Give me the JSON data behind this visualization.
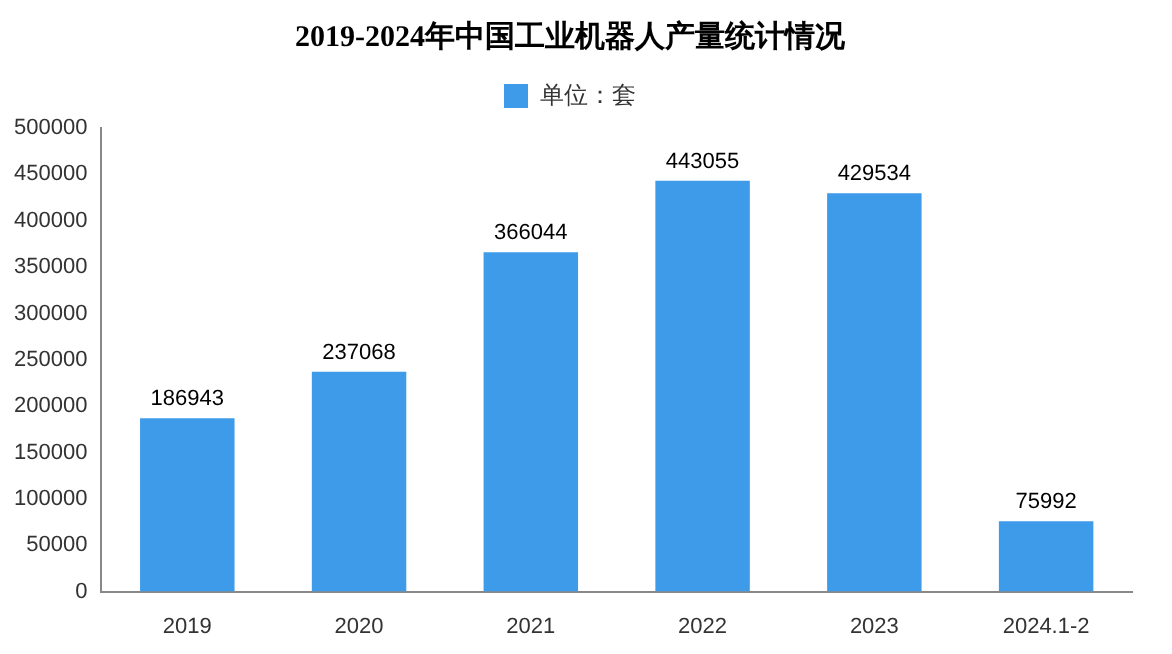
{
  "chart_data": {
    "type": "bar",
    "title": "2019-2024年中国工业机器人产量统计情况",
    "categories": [
      "2019",
      "2020",
      "2021",
      "2022",
      "2023",
      "2024.1-2"
    ],
    "series": [
      {
        "name": "单位：套",
        "color": "#3d9be9",
        "values": [
          186943,
          237068,
          366044,
          443055,
          429534,
          75992
        ]
      }
    ],
    "ylim": [
      0,
      500000
    ],
    "yticks": [
      0,
      50000,
      100000,
      150000,
      200000,
      250000,
      300000,
      350000,
      400000,
      450000,
      500000
    ],
    "grid": false,
    "legend": "top",
    "data_labels": true
  }
}
